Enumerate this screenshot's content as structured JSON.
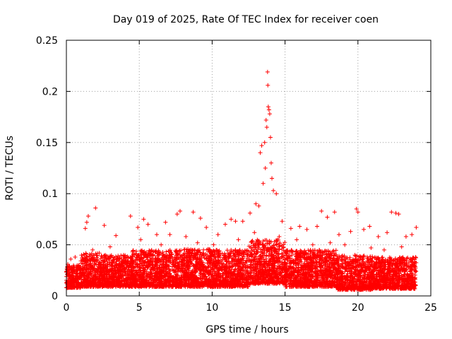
{
  "chart_data": {
    "type": "scatter",
    "title": "Day 019 of 2025, Rate Of TEC Index for receiver coen",
    "xlabel": "GPS time / hours",
    "ylabel": "ROTI / TECUs",
    "xlim": [
      0,
      25
    ],
    "ylim": [
      0,
      0.25
    ],
    "x_ticks": [
      "0",
      "5",
      "10",
      "15",
      "20",
      "25"
    ],
    "y_ticks": [
      "0",
      "0.05",
      "0.1",
      "0.15",
      "0.2",
      "0.25"
    ],
    "grid": true,
    "marker": "+",
    "color": "#ff0000",
    "series": [
      {
        "name": "ROTI",
        "points": [
          [
            0.1,
            0.031
          ],
          [
            0.3,
            0.036
          ],
          [
            0.6,
            0.038
          ],
          [
            1.3,
            0.066
          ],
          [
            1.4,
            0.072
          ],
          [
            1.5,
            0.078
          ],
          [
            2.0,
            0.086
          ],
          [
            2.6,
            0.069
          ],
          [
            3.4,
            0.059
          ],
          [
            4.4,
            0.078
          ],
          [
            4.9,
            0.067
          ],
          [
            5.3,
            0.075
          ],
          [
            5.6,
            0.07
          ],
          [
            6.2,
            0.06
          ],
          [
            6.8,
            0.072
          ],
          [
            7.1,
            0.06
          ],
          [
            7.6,
            0.08
          ],
          [
            7.8,
            0.083
          ],
          [
            8.7,
            0.082
          ],
          [
            9.2,
            0.076
          ],
          [
            9.6,
            0.067
          ],
          [
            10.4,
            0.06
          ],
          [
            10.9,
            0.07
          ],
          [
            11.3,
            0.075
          ],
          [
            11.6,
            0.073
          ],
          [
            12.1,
            0.073
          ],
          [
            12.6,
            0.081
          ],
          [
            13.0,
            0.09
          ],
          [
            13.2,
            0.088
          ],
          [
            13.3,
            0.14
          ],
          [
            13.4,
            0.147
          ],
          [
            13.5,
            0.11
          ],
          [
            13.6,
            0.15
          ],
          [
            13.65,
            0.125
          ],
          [
            13.7,
            0.172
          ],
          [
            13.75,
            0.165
          ],
          [
            13.8,
            0.219
          ],
          [
            13.82,
            0.206
          ],
          [
            13.85,
            0.185
          ],
          [
            13.9,
            0.182
          ],
          [
            13.95,
            0.178
          ],
          [
            14.0,
            0.155
          ],
          [
            14.05,
            0.13
          ],
          [
            14.1,
            0.115
          ],
          [
            14.2,
            0.103
          ],
          [
            14.4,
            0.1
          ],
          [
            14.8,
            0.073
          ],
          [
            15.4,
            0.066
          ],
          [
            16.0,
            0.068
          ],
          [
            16.5,
            0.065
          ],
          [
            17.2,
            0.068
          ],
          [
            17.5,
            0.083
          ],
          [
            17.9,
            0.077
          ],
          [
            18.4,
            0.082
          ],
          [
            18.7,
            0.06
          ],
          [
            19.5,
            0.063
          ],
          [
            19.9,
            0.085
          ],
          [
            20.0,
            0.082
          ],
          [
            20.4,
            0.065
          ],
          [
            20.8,
            0.068
          ],
          [
            21.4,
            0.058
          ],
          [
            22.0,
            0.062
          ],
          [
            22.3,
            0.082
          ],
          [
            22.6,
            0.081
          ],
          [
            22.8,
            0.08
          ],
          [
            23.3,
            0.058
          ],
          [
            23.7,
            0.06
          ],
          [
            24.0,
            0.067
          ],
          [
            1.8,
            0.045
          ],
          [
            3.0,
            0.048
          ],
          [
            5.1,
            0.055
          ],
          [
            6.5,
            0.05
          ],
          [
            8.2,
            0.058
          ],
          [
            9.0,
            0.052
          ],
          [
            10.1,
            0.05
          ],
          [
            11.8,
            0.055
          ],
          [
            12.9,
            0.062
          ],
          [
            14.6,
            0.058
          ],
          [
            15.8,
            0.055
          ],
          [
            16.9,
            0.05
          ],
          [
            18.1,
            0.052
          ],
          [
            19.1,
            0.05
          ],
          [
            20.9,
            0.047
          ],
          [
            21.8,
            0.045
          ],
          [
            23.0,
            0.048
          ],
          [
            0.2,
            0.01
          ],
          [
            2.5,
            0.012
          ],
          [
            5.5,
            0.01
          ],
          [
            9.5,
            0.011
          ],
          [
            13.5,
            0.016
          ],
          [
            16.2,
            0.012
          ],
          [
            19.5,
            0.008
          ],
          [
            22.5,
            0.01
          ]
        ]
      }
    ],
    "dense_band": [
      {
        "x0": 0.0,
        "x1": 1.0,
        "ymin": 0.008,
        "ymax": 0.03
      },
      {
        "x0": 1.0,
        "x1": 2.5,
        "ymin": 0.009,
        "ymax": 0.042
      },
      {
        "x0": 2.5,
        "x1": 4.5,
        "ymin": 0.009,
        "ymax": 0.04
      },
      {
        "x0": 4.5,
        "x1": 7.5,
        "ymin": 0.009,
        "ymax": 0.045
      },
      {
        "x0": 7.5,
        "x1": 10.0,
        "ymin": 0.009,
        "ymax": 0.046
      },
      {
        "x0": 10.0,
        "x1": 12.5,
        "ymin": 0.009,
        "ymax": 0.045
      },
      {
        "x0": 12.5,
        "x1": 15.0,
        "ymin": 0.012,
        "ymax": 0.055
      },
      {
        "x0": 15.0,
        "x1": 18.5,
        "ymin": 0.009,
        "ymax": 0.045
      },
      {
        "x0": 18.5,
        "x1": 21.0,
        "ymin": 0.006,
        "ymax": 0.04
      },
      {
        "x0": 21.0,
        "x1": 24.0,
        "ymin": 0.007,
        "ymax": 0.038
      }
    ]
  }
}
